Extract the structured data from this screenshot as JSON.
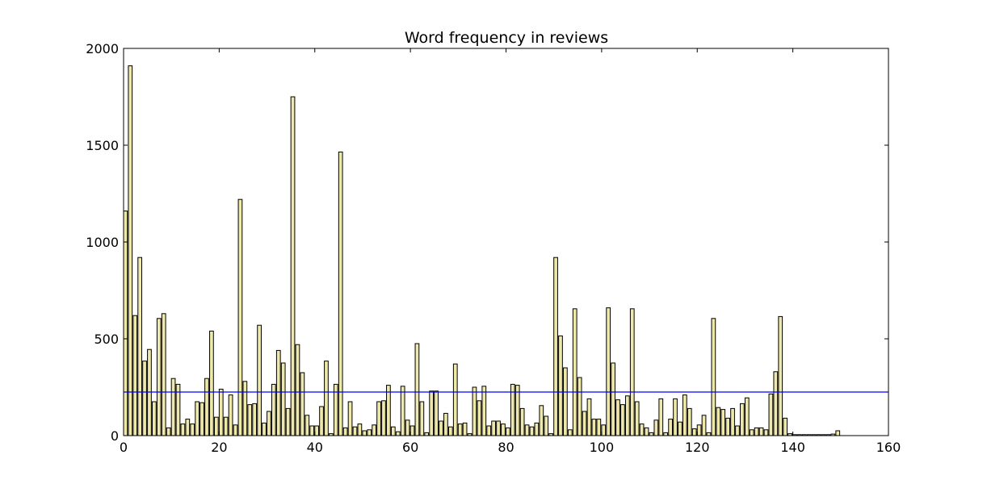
{
  "chart_data": {
    "type": "bar",
    "title": "Word frequency in reviews",
    "xlabel": "",
    "ylabel": "",
    "xlim": [
      0,
      160
    ],
    "ylim": [
      0,
      2000
    ],
    "xticks": [
      0,
      20,
      40,
      60,
      80,
      100,
      120,
      140,
      160
    ],
    "yticks": [
      0,
      500,
      1000,
      1500,
      2000
    ],
    "grid": false,
    "bar_width": 0.8,
    "bar_color": "#eee8aa",
    "bar_edge_color": "#000000",
    "reference_line": {
      "value": 225,
      "color": "#0000ff"
    },
    "x": [
      0,
      1,
      2,
      3,
      4,
      5,
      6,
      7,
      8,
      9,
      10,
      11,
      12,
      13,
      14,
      15,
      16,
      17,
      18,
      19,
      20,
      21,
      22,
      23,
      24,
      25,
      26,
      27,
      28,
      29,
      30,
      31,
      32,
      33,
      34,
      35,
      36,
      37,
      38,
      39,
      40,
      41,
      42,
      43,
      44,
      45,
      46,
      47,
      48,
      49,
      50,
      51,
      52,
      53,
      54,
      55,
      56,
      57,
      58,
      59,
      60,
      61,
      62,
      63,
      64,
      65,
      66,
      67,
      68,
      69,
      70,
      71,
      72,
      73,
      74,
      75,
      76,
      77,
      78,
      79,
      80,
      81,
      82,
      83,
      84,
      85,
      86,
      87,
      88,
      89,
      90,
      91,
      92,
      93,
      94,
      95,
      96,
      97,
      98,
      99,
      100,
      101,
      102,
      103,
      104,
      105,
      106,
      107,
      108,
      109,
      110,
      111,
      112,
      113,
      114,
      115,
      116,
      117,
      118,
      119,
      120,
      121,
      122,
      123,
      124,
      125,
      126,
      127,
      128,
      129,
      130,
      131,
      132,
      133,
      134,
      135,
      136,
      137,
      138,
      139,
      140,
      141,
      142,
      143,
      144,
      145,
      146,
      147,
      148,
      149
    ],
    "values": [
      1160,
      1910,
      620,
      920,
      385,
      445,
      175,
      605,
      630,
      40,
      295,
      265,
      60,
      85,
      60,
      175,
      170,
      295,
      540,
      95,
      240,
      95,
      210,
      55,
      1220,
      280,
      160,
      165,
      570,
      65,
      125,
      265,
      440,
      375,
      140,
      1750,
      470,
      325,
      105,
      50,
      50,
      150,
      385,
      10,
      265,
      1465,
      40,
      175,
      45,
      60,
      25,
      30,
      55,
      175,
      180,
      260,
      45,
      20,
      255,
      80,
      50,
      475,
      175,
      15,
      230,
      230,
      75,
      115,
      45,
      370,
      60,
      65,
      10,
      250,
      180,
      255,
      50,
      75,
      75,
      60,
      40,
      265,
      260,
      140,
      55,
      45,
      65,
      155,
      100,
      10,
      920,
      515,
      350,
      30,
      655,
      300,
      125,
      190,
      85,
      85,
      55,
      660,
      375,
      185,
      160,
      205,
      655,
      175,
      60,
      40,
      15,
      80,
      190,
      15,
      85,
      190,
      70,
      210,
      140,
      35,
      55,
      105,
      15,
      605,
      145,
      135,
      90,
      140,
      50,
      165,
      195,
      30,
      40,
      40,
      30,
      215,
      330,
      615,
      90,
      10,
      5,
      5,
      5,
      5,
      5,
      5,
      5,
      5,
      8,
      25
    ]
  }
}
